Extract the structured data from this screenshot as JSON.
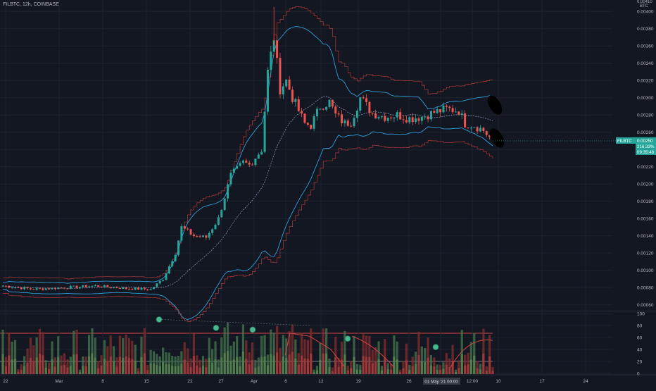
{
  "header": {
    "symbol_line": "FILBTC, 12h, COINBASE"
  },
  "colors": {
    "background": "#131722",
    "up": "#26a69a",
    "down": "#ef5350",
    "band": "#2e9fd8",
    "basis": "#8fa3c7",
    "dotted": "#b33a3a",
    "vol_up": "#3f6b4a",
    "vol_down": "#7a2b2b",
    "grid": "#1e222d",
    "axis_text": "#b2b5be",
    "price_label_bg": "#26a69a"
  },
  "chart_data": [
    {
      "type": "candlestick",
      "title": "FILBTC, 12h, COINBASE",
      "currency": "BTC",
      "yticks": [
        "0.00400",
        "0.00380",
        "0.00360",
        "0.00340",
        "0.00320",
        "0.00300",
        "0.00280",
        "0.00260",
        "0.00240",
        "0.00220",
        "0.00200",
        "0.00180",
        "0.00160",
        "0.00140",
        "0.00120",
        "0.00100",
        "0.00080",
        "0.00060"
      ],
      "ylim": [
        0.00054,
        0.0041
      ],
      "xticks": [
        "22",
        "Mar",
        "8",
        "15",
        "22",
        "27",
        "Apr",
        "6",
        "12",
        "19",
        "26",
        "May",
        "12:00",
        "10",
        "17",
        "24"
      ],
      "x_label_overlay": "01 May '21  00:00",
      "last_price": {
        "value": "0.00250",
        "change": "216.33%",
        "timer": "09:35:48",
        "ticker": "FILBTC"
      },
      "price_axis_top": "0.00410",
      "price_axis_unit": "BTC",
      "candle_count": 160
    },
    {
      "type": "oscillator",
      "yticks": [
        "100",
        "80",
        "60",
        "40",
        "20",
        "0"
      ],
      "ylim": [
        0,
        100
      ],
      "levels": [
        20,
        67
      ],
      "markers": [
        90,
        76,
        73,
        58,
        44
      ]
    }
  ]
}
